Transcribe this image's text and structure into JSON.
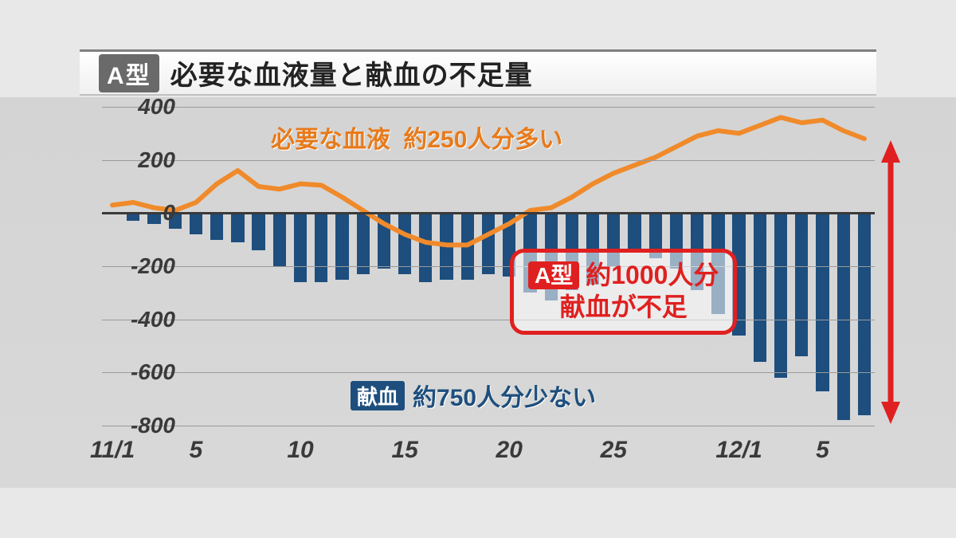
{
  "title": {
    "badge": "A型",
    "text": "必要な血液量と献血の不足量"
  },
  "chart": {
    "type": "bar+line",
    "background_color": "#d6d6d6",
    "grid_color": "#9a9a9a",
    "zero_line_color": "#3a3a3a",
    "ylim": [
      -800,
      400
    ],
    "yticks": [
      -800,
      -600,
      -400,
      -200,
      0,
      200,
      400
    ],
    "x_ticks": [
      {
        "index": 0,
        "label": "11/1"
      },
      {
        "index": 4,
        "label": "5"
      },
      {
        "index": 9,
        "label": "10"
      },
      {
        "index": 14,
        "label": "15"
      },
      {
        "index": 19,
        "label": "20"
      },
      {
        "index": 24,
        "label": "25"
      },
      {
        "index": 30,
        "label": "12/1"
      },
      {
        "index": 34,
        "label": "5"
      }
    ],
    "bar_color": "#1d4e7d",
    "bar_count": 37,
    "bar_values": [
      0,
      -30,
      -40,
      -60,
      -80,
      -100,
      -110,
      -140,
      -200,
      -260,
      -260,
      -250,
      -230,
      -210,
      -230,
      -260,
      -250,
      -250,
      -230,
      -240,
      -300,
      -330,
      -290,
      -270,
      -200,
      -150,
      -170,
      -210,
      -290,
      -380,
      -460,
      -560,
      -620,
      -540,
      -670,
      -780,
      -760
    ],
    "line_color": "#f08a2a",
    "line_width": 6,
    "line_values": [
      30,
      40,
      20,
      10,
      40,
      110,
      160,
      100,
      90,
      110,
      105,
      60,
      10,
      -40,
      -80,
      -110,
      -120,
      -120,
      -80,
      -40,
      10,
      20,
      60,
      110,
      150,
      180,
      210,
      250,
      290,
      310,
      300,
      330,
      360,
      340,
      350,
      310,
      280
    ],
    "annotation_top": {
      "label": "必要な血液",
      "value": "約250人分多い",
      "color": "#e87a1a"
    },
    "annotation_bottom": {
      "label": "献血",
      "value": "約750人分少ない",
      "color": "#1d4e7d"
    },
    "callout": {
      "badge": "A型",
      "line1": "約1000人分",
      "line2": "献血が不足",
      "border_color": "#e02020",
      "text_color": "#e02020"
    },
    "arrow_color": "#e02020"
  }
}
